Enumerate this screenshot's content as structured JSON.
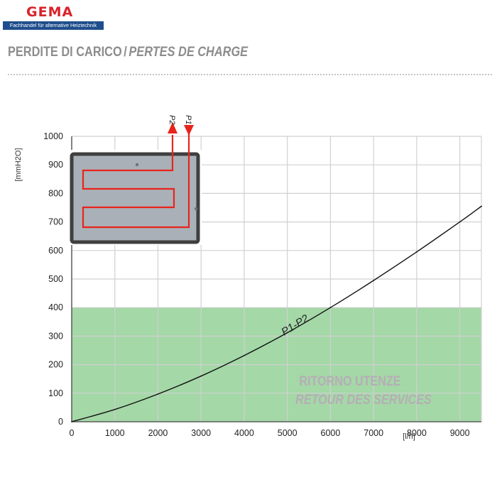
{
  "brand": {
    "name": "GEMA",
    "tagline": "Fachhandel für alternative Heiztechnik"
  },
  "heading": {
    "it": "PERDITE DI CARICO",
    "separator": "/",
    "fr": "PERTES DE CHARGE"
  },
  "chart_data": {
    "type": "line",
    "x_ticks": [
      "0",
      "1000",
      "2000",
      "3000",
      "4000",
      "5000",
      "6000",
      "7000",
      "8000",
      "9000"
    ],
    "y_ticks": [
      "0",
      "100",
      "200",
      "300",
      "400",
      "500",
      "600",
      "700",
      "800",
      "900",
      "1000"
    ],
    "xlabel": "[l/h]",
    "ylabel": "[mmH2O]",
    "xlim": [
      0,
      9500
    ],
    "ylim": [
      0,
      1000
    ],
    "grid": true,
    "series": [
      {
        "name": "P1-P2",
        "x": [
          0,
          1000,
          2000,
          3000,
          4000,
          5000,
          6000,
          7000,
          8000,
          9000,
          9500
        ],
        "y": [
          0,
          43,
          97,
          160,
          232,
          312,
          400,
          495,
          595,
          700,
          755
        ],
        "color": "#111111"
      }
    ],
    "zones": [
      {
        "y_from": 0,
        "y_to": 400,
        "color": "#9fd6a2",
        "label_it": "RITORNO UTENZE",
        "label_fr": "RETOUR DES SERVICES"
      }
    ],
    "inset": {
      "port_labels": [
        "P2",
        "P1"
      ],
      "pipe_color": "#e8241c",
      "body_color": "#a9b0b8"
    }
  }
}
